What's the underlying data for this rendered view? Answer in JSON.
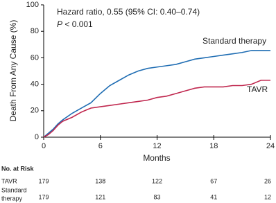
{
  "chart_data": {
    "type": "line",
    "x_label": "Months",
    "y_label": "Death From Any Cause (%)",
    "annotations": {
      "hazard_ratio": "Hazard ratio, 0.55 (95% CI: 0.40–0.74)",
      "p_symbol": "P",
      "p_value": "< 0.001"
    },
    "x": [
      0,
      0.5,
      1,
      1.5,
      2,
      3,
      4,
      5,
      6,
      7,
      8,
      9,
      10,
      11,
      12,
      13,
      14,
      15,
      16,
      17,
      18,
      19,
      20,
      21,
      22,
      23,
      24
    ],
    "series": [
      {
        "name": "Standard therapy",
        "color": "#1f6db3",
        "values": [
          0,
          3,
          6,
          10,
          13,
          18,
          22,
          26,
          33,
          39,
          43,
          47,
          50,
          52,
          53,
          54,
          55,
          57,
          59,
          60,
          61,
          62,
          63,
          64,
          65.5,
          65.5,
          65.5
        ]
      },
      {
        "name": "TAVR",
        "color": "#c0284f",
        "values": [
          0,
          2,
          5,
          9,
          12,
          15,
          19,
          22,
          23,
          24,
          25,
          26,
          27,
          28,
          30,
          31,
          33,
          35,
          37,
          38,
          38,
          38,
          39,
          39,
          40,
          43,
          43
        ]
      }
    ],
    "xlim": [
      0,
      24
    ],
    "xticks": [
      0,
      6,
      12,
      18,
      24
    ],
    "ylim": [
      0,
      100
    ],
    "yticks": [
      0,
      20,
      40,
      60,
      80,
      100
    ],
    "risk_table": {
      "title": "No. at Risk",
      "rows": [
        {
          "label": [
            "TAVR"
          ],
          "values": [
            179,
            138,
            122,
            67,
            26
          ]
        },
        {
          "label": [
            "Standard",
            "therapy"
          ],
          "values": [
            179,
            121,
            83,
            41,
            12
          ]
        }
      ]
    }
  }
}
